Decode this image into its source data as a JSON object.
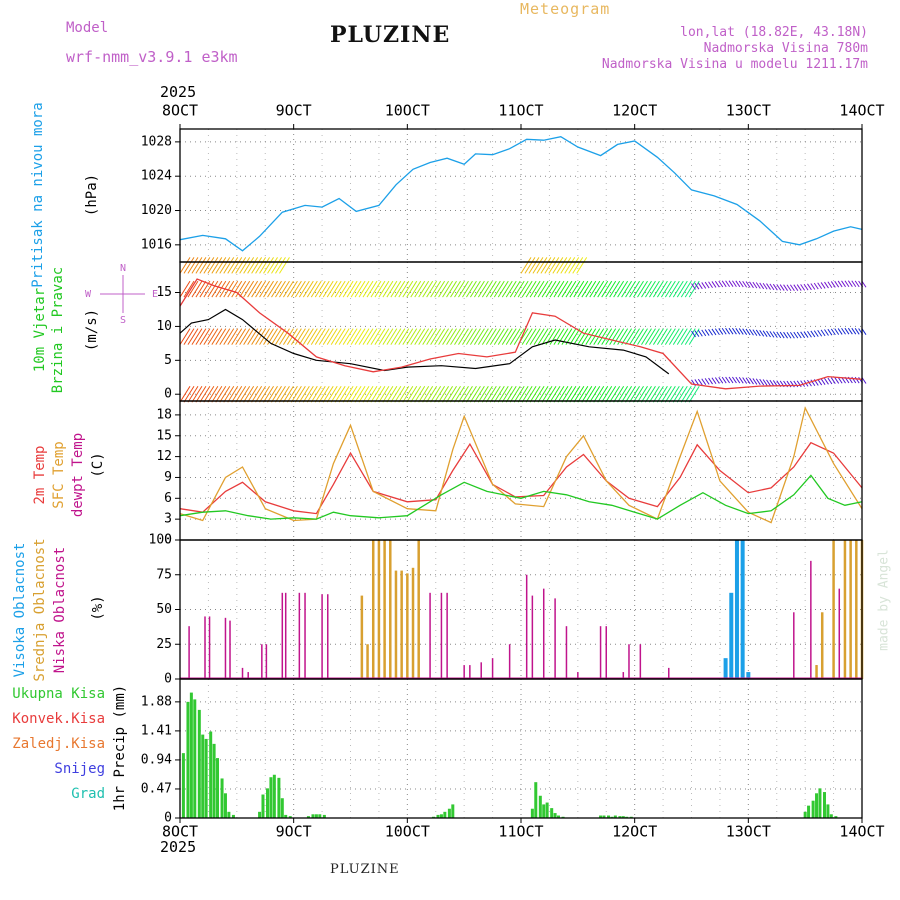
{
  "header": {
    "model_label": "Model",
    "model_name": "wrf-nmm_v3.9.1 e3km",
    "station": "PLUZINE",
    "product": "Meteogram",
    "coords": "lon,lat (18.82E, 43.18N)",
    "altitude": "Nadmorska Visina 780m",
    "model_altitude": "Nadmorska Visina u modelu 1211.17m",
    "year": "2025",
    "footer_station": "PLUZINE",
    "watermark": "made by Angel"
  },
  "colors": {
    "pressure": "#1ca0e8",
    "wind_label": "#22c822",
    "temp2m": "#e83c3c",
    "sfc": "#e0a030",
    "dew": "#22c822",
    "low_cloud": "#c0148c",
    "mid_cloud": "#d8a030",
    "high_cloud": "#1ca0e8",
    "precip": "#32c832",
    "magenta": "#c060c8",
    "orange_title": "#e8b860"
  },
  "chart_data": [
    {
      "type": "line",
      "name": "pressure",
      "title": "Pritisak na nivou mora",
      "ylabel": "(hPa)",
      "x_ticks": [
        "8OCT",
        "9OCT",
        "10OCT",
        "11OCT",
        "12OCT",
        "13OCT",
        "14OCT"
      ],
      "x_day": [
        8,
        9,
        10,
        11,
        12,
        13,
        14
      ],
      "y_ticks": [
        1016,
        1020,
        1024,
        1028
      ],
      "ylim": [
        1014,
        1029.5
      ],
      "x": [
        8.0,
        8.2,
        8.4,
        8.55,
        8.7,
        8.9,
        9.1,
        9.25,
        9.4,
        9.55,
        9.75,
        9.9,
        10.05,
        10.2,
        10.35,
        10.5,
        10.6,
        10.75,
        10.9,
        11.05,
        11.2,
        11.35,
        11.5,
        11.7,
        11.85,
        12.0,
        12.2,
        12.35,
        12.5,
        12.7,
        12.9,
        13.1,
        13.3,
        13.45,
        13.6,
        13.75,
        13.9,
        14.0
      ],
      "y": [
        1016.6,
        1017.1,
        1016.7,
        1015.3,
        1017.0,
        1019.8,
        1020.6,
        1020.4,
        1021.4,
        1019.9,
        1020.6,
        1023.0,
        1024.8,
        1025.6,
        1026.1,
        1025.4,
        1026.6,
        1026.5,
        1027.2,
        1028.3,
        1028.2,
        1028.6,
        1027.4,
        1026.4,
        1027.7,
        1028.1,
        1026.2,
        1024.4,
        1022.4,
        1021.7,
        1020.7,
        1018.8,
        1016.4,
        1016.0,
        1016.7,
        1017.6,
        1018.1,
        1017.8
      ]
    },
    {
      "type": "line",
      "name": "wind",
      "title_lines": [
        "10m Vjetar",
        "Brzina i Pravac"
      ],
      "ylabel": "(m/s)",
      "compass": [
        "N",
        "W",
        "E",
        "S"
      ],
      "y_ticks": [
        0,
        5,
        10,
        15
      ],
      "ylim": [
        -1,
        19.5
      ],
      "series": [
        {
          "name": "speed",
          "x": [
            8.0,
            8.1,
            8.25,
            8.4,
            8.55,
            8.8,
            9.0,
            9.2,
            9.5,
            9.8,
            10.0,
            10.3,
            10.6,
            10.9,
            11.1,
            11.3,
            11.6,
            11.9,
            12.1,
            12.3
          ],
          "y": [
            9.0,
            10.5,
            11.0,
            12.5,
            11.0,
            7.5,
            6.0,
            5.0,
            4.5,
            3.5,
            4.0,
            4.2,
            3.8,
            4.5,
            7.0,
            8.0,
            7.0,
            6.5,
            5.5,
            3.0
          ]
        },
        {
          "name": "gust",
          "x": [
            8.0,
            8.15,
            8.3,
            8.5,
            8.7,
            8.95,
            9.2,
            9.45,
            9.7,
            9.95,
            10.2,
            10.45,
            10.7,
            10.95,
            11.1,
            11.3,
            11.55,
            11.8,
            12.05,
            12.25,
            12.5,
            12.8,
            13.1,
            13.45,
            13.7,
            14.0
          ],
          "y": [
            13.0,
            17.0,
            16.0,
            15.0,
            12.0,
            9.0,
            5.5,
            4.2,
            3.3,
            4.0,
            5.2,
            6.0,
            5.5,
            6.2,
            12.0,
            11.5,
            9.0,
            8.0,
            7.0,
            6.0,
            1.5,
            0.8,
            1.2,
            1.3,
            2.6,
            2.2
          ]
        }
      ]
    },
    {
      "type": "line",
      "name": "temperature",
      "legend": [
        "2m Temp",
        "SFC Temp",
        "dewpt Temp"
      ],
      "ylabel": "(C)",
      "y_ticks": [
        0,
        3,
        6,
        9,
        12,
        15,
        18
      ],
      "ylim": [
        0,
        20
      ],
      "series": [
        {
          "name": "2m Temp",
          "x": [
            8.0,
            8.2,
            8.4,
            8.55,
            8.75,
            9.0,
            9.2,
            9.35,
            9.5,
            9.7,
            10.0,
            10.25,
            10.4,
            10.55,
            10.75,
            10.95,
            11.2,
            11.4,
            11.55,
            11.75,
            11.95,
            12.2,
            12.4,
            12.55,
            12.75,
            13.0,
            13.2,
            13.4,
            13.55,
            13.75,
            14.0
          ],
          "y": [
            4.5,
            4.0,
            7.0,
            8.3,
            5.5,
            4.2,
            3.8,
            8.0,
            12.5,
            7.0,
            5.5,
            5.8,
            10.0,
            13.8,
            8.0,
            6.2,
            6.4,
            10.5,
            12.3,
            8.5,
            6.0,
            4.8,
            9.0,
            13.7,
            10.0,
            6.8,
            7.5,
            10.5,
            14.0,
            12.5,
            7.5
          ]
        },
        {
          "name": "SFC Temp",
          "x": [
            8.0,
            8.2,
            8.4,
            8.55,
            8.75,
            9.0,
            9.2,
            9.35,
            9.5,
            9.7,
            10.0,
            10.25,
            10.4,
            10.5,
            10.75,
            10.95,
            11.2,
            11.4,
            11.55,
            11.75,
            11.95,
            12.2,
            12.4,
            12.55,
            12.75,
            13.0,
            13.2,
            13.4,
            13.5,
            13.75,
            14.0
          ],
          "y": [
            3.8,
            2.8,
            9.0,
            10.5,
            4.5,
            2.8,
            3.0,
            11.0,
            16.5,
            7.0,
            4.5,
            4.2,
            13.0,
            17.8,
            8.0,
            5.2,
            4.8,
            12.0,
            15.0,
            8.5,
            5.0,
            3.0,
            12.0,
            18.5,
            8.5,
            4.0,
            2.5,
            12.0,
            19.0,
            11.0,
            4.5
          ]
        },
        {
          "name": "dewpt Temp",
          "x": [
            8.0,
            8.2,
            8.4,
            8.6,
            8.8,
            9.0,
            9.2,
            9.35,
            9.5,
            9.75,
            10.0,
            10.3,
            10.5,
            10.7,
            11.0,
            11.2,
            11.4,
            11.6,
            11.8,
            12.0,
            12.2,
            12.4,
            12.6,
            12.8,
            13.0,
            13.2,
            13.4,
            13.55,
            13.7,
            13.85,
            14.0
          ],
          "y": [
            3.5,
            4.0,
            4.2,
            3.5,
            3.0,
            3.2,
            3.0,
            4.0,
            3.5,
            3.2,
            3.5,
            6.5,
            8.3,
            7.0,
            6.0,
            7.0,
            6.5,
            5.5,
            5.0,
            4.0,
            3.0,
            5.0,
            6.8,
            5.0,
            3.8,
            4.2,
            6.5,
            9.3,
            6.0,
            5.0,
            5.5
          ]
        }
      ]
    },
    {
      "type": "bar",
      "name": "clouds",
      "legend": [
        "Visoka Oblacnost",
        "Srednja Oblacnost",
        "Niska Oblacnost"
      ],
      "ylabel": "(%)",
      "y_ticks": [
        0,
        25,
        50,
        75,
        100
      ],
      "ylim": [
        0,
        100
      ],
      "series": [
        {
          "name": "Niska Oblacnost",
          "x": [
            8.08,
            8.22,
            8.26,
            8.4,
            8.44,
            8.55,
            8.6,
            8.72,
            8.76,
            8.9,
            8.93,
            9.05,
            9.1,
            9.25,
            9.3,
            10.2,
            10.3,
            10.35,
            10.5,
            10.55,
            10.65,
            10.75,
            10.9,
            11.05,
            11.1,
            11.2,
            11.3,
            11.4,
            11.5,
            11.7,
            11.75,
            11.9,
            11.95,
            12.05,
            12.3,
            13.4,
            13.55,
            13.6,
            13.8,
            13.9,
            13.95,
            14.0
          ],
          "y": [
            38,
            45,
            45,
            44,
            42,
            8,
            5,
            25,
            25,
            62,
            62,
            62,
            62,
            61,
            61,
            62,
            62,
            62,
            10,
            10,
            12,
            15,
            25,
            75,
            60,
            65,
            58,
            38,
            5,
            38,
            38,
            5,
            25,
            25,
            8,
            48,
            85,
            10,
            65,
            50,
            10,
            5
          ]
        },
        {
          "name": "Srednja Oblacnost",
          "x": [
            9.6,
            9.65,
            9.7,
            9.75,
            9.8,
            9.85,
            9.9,
            9.95,
            10.0,
            10.05,
            10.1,
            13.6,
            13.65,
            13.75,
            13.85,
            13.9,
            13.95,
            14.0
          ],
          "y": [
            60,
            25,
            100,
            100,
            100,
            100,
            78,
            78,
            76,
            80,
            100,
            10,
            48,
            100,
            100,
            100,
            100,
            100
          ]
        },
        {
          "name": "Visoka Oblacnost",
          "x": [
            12.8,
            12.85,
            12.9,
            12.95,
            13.0
          ],
          "y": [
            15,
            62,
            100,
            100,
            5
          ]
        }
      ]
    },
    {
      "type": "bar",
      "name": "precipitation",
      "legend": [
        "Ukupna Kisa",
        "Konvek.Kisa",
        "Zaledj.Kisa",
        "Snijeg",
        "Grad"
      ],
      "ylabel": "1hr Precip (mm)",
      "y_ticks": [
        0,
        0.47,
        0.94,
        1.41,
        1.88
      ],
      "ylim": [
        0,
        2.25
      ],
      "x": [
        8.03,
        8.07,
        8.1,
        8.13,
        8.17,
        8.2,
        8.23,
        8.27,
        8.3,
        8.33,
        8.37,
        8.4,
        8.43,
        8.47,
        8.7,
        8.73,
        8.77,
        8.8,
        8.83,
        8.87,
        8.9,
        8.93,
        8.97,
        9.13,
        9.17,
        9.2,
        9.23,
        9.27,
        10.23,
        10.27,
        10.3,
        10.33,
        10.37,
        10.4,
        11.1,
        11.13,
        11.17,
        11.2,
        11.23,
        11.27,
        11.3,
        11.33,
        11.37,
        11.7,
        11.73,
        11.77,
        11.8,
        11.83,
        11.87,
        11.9,
        11.93,
        11.97,
        13.5,
        13.53,
        13.57,
        13.6,
        13.63,
        13.67,
        13.7,
        13.73,
        13.77
      ],
      "y": [
        1.05,
        1.88,
        2.03,
        1.92,
        1.75,
        1.35,
        1.28,
        1.4,
        1.2,
        0.97,
        0.64,
        0.4,
        0.1,
        0.05,
        0.1,
        0.38,
        0.48,
        0.66,
        0.7,
        0.65,
        0.32,
        0.05,
        0.03,
        0.03,
        0.06,
        0.06,
        0.06,
        0.05,
        0.02,
        0.05,
        0.06,
        0.1,
        0.15,
        0.22,
        0.15,
        0.58,
        0.36,
        0.22,
        0.25,
        0.16,
        0.08,
        0.04,
        0.02,
        0.04,
        0.04,
        0.04,
        0.02,
        0.04,
        0.03,
        0.03,
        0.02,
        0.02,
        0.1,
        0.2,
        0.28,
        0.4,
        0.48,
        0.42,
        0.22,
        0.06,
        0.03
      ]
    }
  ]
}
